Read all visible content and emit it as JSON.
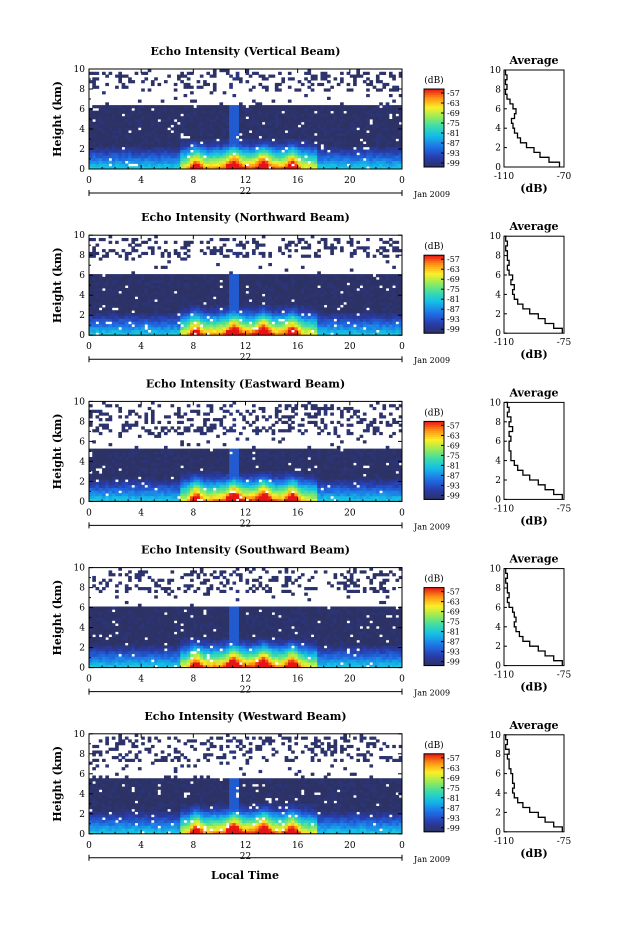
{
  "figure": {
    "xlabel": "Local Time",
    "date_label": "Jan 2009",
    "day_label": "22",
    "ylabel": "Height (km)",
    "colorbar_unit": "(dB)",
    "avg_title": "Average",
    "avg_xlabel": "(dB)"
  },
  "chart_data": [
    {
      "type": "heatmap",
      "title": "Echo Intensity (Vertical Beam)",
      "xlabel": "Local Time",
      "ylabel": "Height (km)",
      "x_ticks": [
        "0",
        "4",
        "8",
        "12",
        "16",
        "20",
        "0"
      ],
      "y_ticks": [
        "0",
        "2",
        "4",
        "6",
        "8",
        "10"
      ],
      "xlim": [
        0,
        24
      ],
      "ylim": [
        0,
        10
      ],
      "colorbar": {
        "unit": "(dB)",
        "ticks": [
          "-57",
          "-63",
          "-69",
          "-75",
          "-81",
          "-87",
          "-93",
          "-99"
        ]
      },
      "cloud_top_km": 6.3,
      "average_profile": {
        "title": "Average",
        "xlabel": "(dB)",
        "xlim": [
          -110,
          -70
        ],
        "x_ticks": [
          "-110",
          "-70"
        ],
        "y_ticks": [
          "0",
          "2",
          "4",
          "6",
          "8",
          "10"
        ],
        "height_km": [
          0,
          0.5,
          1,
          1.5,
          2,
          2.5,
          3,
          3.5,
          4,
          4.5,
          5,
          5.5,
          6,
          6.5,
          7,
          7.5,
          8,
          8.5,
          9,
          9.5,
          10
        ],
        "value_db": [
          -73,
          -80,
          -86,
          -90,
          -95,
          -99,
          -101,
          -103,
          -104,
          -105,
          -103,
          -102,
          -104,
          -106,
          -108,
          -109,
          -108,
          -109,
          -108,
          -109,
          -109
        ]
      }
    },
    {
      "type": "heatmap",
      "title": "Echo Intensity (Northward Beam)",
      "xlabel": "Local Time",
      "ylabel": "Height (km)",
      "x_ticks": [
        "0",
        "4",
        "8",
        "12",
        "16",
        "20",
        "0"
      ],
      "y_ticks": [
        "0",
        "2",
        "4",
        "6",
        "8",
        "10"
      ],
      "xlim": [
        0,
        24
      ],
      "ylim": [
        0,
        10
      ],
      "colorbar": {
        "unit": "(dB)",
        "ticks": [
          "-57",
          "-63",
          "-69",
          "-75",
          "-81",
          "-87",
          "-93",
          "-99"
        ]
      },
      "cloud_top_km": 6.2,
      "average_profile": {
        "title": "Average",
        "xlabel": "(dB)",
        "xlim": [
          -110,
          -75
        ],
        "x_ticks": [
          "-110",
          "-75"
        ],
        "y_ticks": [
          "0",
          "2",
          "4",
          "6",
          "8",
          "10"
        ],
        "height_km": [
          0,
          0.5,
          1,
          1.5,
          2,
          2.5,
          3,
          3.5,
          4,
          4.5,
          5,
          5.5,
          6,
          6.5,
          7,
          7.5,
          8,
          8.5,
          9,
          9.5,
          10
        ],
        "value_db": [
          -76,
          -81,
          -86,
          -90,
          -95,
          -99,
          -102,
          -104,
          -105,
          -104,
          -106,
          -105,
          -107,
          -108,
          -107,
          -108,
          -108,
          -109,
          -108,
          -109,
          -109
        ]
      }
    },
    {
      "type": "heatmap",
      "title": "Echo Intensity (Eastward Beam)",
      "xlabel": "Local Time",
      "ylabel": "Height (km)",
      "x_ticks": [
        "0",
        "4",
        "8",
        "12",
        "16",
        "20",
        "0"
      ],
      "y_ticks": [
        "0",
        "2",
        "4",
        "6",
        "8",
        "10"
      ],
      "xlim": [
        0,
        24
      ],
      "ylim": [
        0,
        10
      ],
      "colorbar": {
        "unit": "(dB)",
        "ticks": [
          "-57",
          "-63",
          "-69",
          "-75",
          "-81",
          "-87",
          "-93",
          "-99"
        ]
      },
      "cloud_top_km": 5.2,
      "average_profile": {
        "title": "Average",
        "xlabel": "(dB)",
        "xlim": [
          -110,
          -75
        ],
        "x_ticks": [
          "-110",
          "-75"
        ],
        "y_ticks": [
          "0",
          "2",
          "4",
          "6",
          "8",
          "10"
        ],
        "height_km": [
          0,
          0.5,
          1,
          1.5,
          2,
          2.5,
          3,
          3.5,
          4,
          4.5,
          5,
          5.5,
          6,
          6.5,
          7,
          7.5,
          8,
          8.5,
          9,
          9.5,
          10
        ],
        "value_db": [
          -76,
          -81,
          -86,
          -90,
          -95,
          -99,
          -102,
          -104,
          -106,
          -106,
          -107,
          -107,
          -106,
          -107,
          -105,
          -107,
          -106,
          -108,
          -107,
          -108,
          -109
        ]
      }
    },
    {
      "type": "heatmap",
      "title": "Echo Intensity (Southward Beam)",
      "xlabel": "Local Time",
      "ylabel": "Height (km)",
      "x_ticks": [
        "0",
        "4",
        "8",
        "12",
        "16",
        "20",
        "0"
      ],
      "y_ticks": [
        "0",
        "2",
        "4",
        "6",
        "8",
        "10"
      ],
      "xlim": [
        0,
        24
      ],
      "ylim": [
        0,
        10
      ],
      "colorbar": {
        "unit": "(dB)",
        "ticks": [
          "-57",
          "-63",
          "-69",
          "-75",
          "-81",
          "-87",
          "-93",
          "-99"
        ]
      },
      "cloud_top_km": 6.0,
      "average_profile": {
        "title": "Average",
        "xlabel": "(dB)",
        "xlim": [
          -110,
          -75
        ],
        "x_ticks": [
          "-110",
          "-75"
        ],
        "y_ticks": [
          "0",
          "2",
          "4",
          "6",
          "8",
          "10"
        ],
        "height_km": [
          0,
          0.5,
          1,
          1.5,
          2,
          2.5,
          3,
          3.5,
          4,
          4.5,
          5,
          5.5,
          6,
          6.5,
          7,
          7.5,
          8,
          8.5,
          9,
          9.5,
          10
        ],
        "value_db": [
          -76,
          -81,
          -86,
          -90,
          -95,
          -99,
          -101,
          -103,
          -104,
          -103,
          -104,
          -105,
          -107,
          -108,
          -107,
          -108,
          -108,
          -109,
          -108,
          -109,
          -109
        ]
      }
    },
    {
      "type": "heatmap",
      "title": "Echo Intensity (Westward Beam)",
      "xlabel": "Local Time",
      "ylabel": "Height (km)",
      "x_ticks": [
        "0",
        "4",
        "8",
        "12",
        "16",
        "20",
        "0"
      ],
      "y_ticks": [
        "0",
        "2",
        "4",
        "6",
        "8",
        "10"
      ],
      "xlim": [
        0,
        24
      ],
      "ylim": [
        0,
        10
      ],
      "colorbar": {
        "unit": "(dB)",
        "ticks": [
          "-57",
          "-63",
          "-69",
          "-75",
          "-81",
          "-87",
          "-93",
          "-99"
        ]
      },
      "cloud_top_km": 5.6,
      "average_profile": {
        "title": "Average",
        "xlabel": "(dB)",
        "xlim": [
          -110,
          -75
        ],
        "x_ticks": [
          "-110",
          "-75"
        ],
        "y_ticks": [
          "0",
          "2",
          "4",
          "6",
          "8",
          "10"
        ],
        "height_km": [
          0,
          0.5,
          1,
          1.5,
          2,
          2.5,
          3,
          3.5,
          4,
          4.5,
          5,
          5.5,
          6,
          6.5,
          7,
          7.5,
          8,
          8.5,
          9,
          9.5,
          10
        ],
        "value_db": [
          -76,
          -81,
          -86,
          -90,
          -95,
          -99,
          -102,
          -104,
          -105,
          -104,
          -105,
          -105,
          -106,
          -107,
          -107,
          -108,
          -107,
          -109,
          -108,
          -109,
          -109
        ]
      }
    }
  ]
}
